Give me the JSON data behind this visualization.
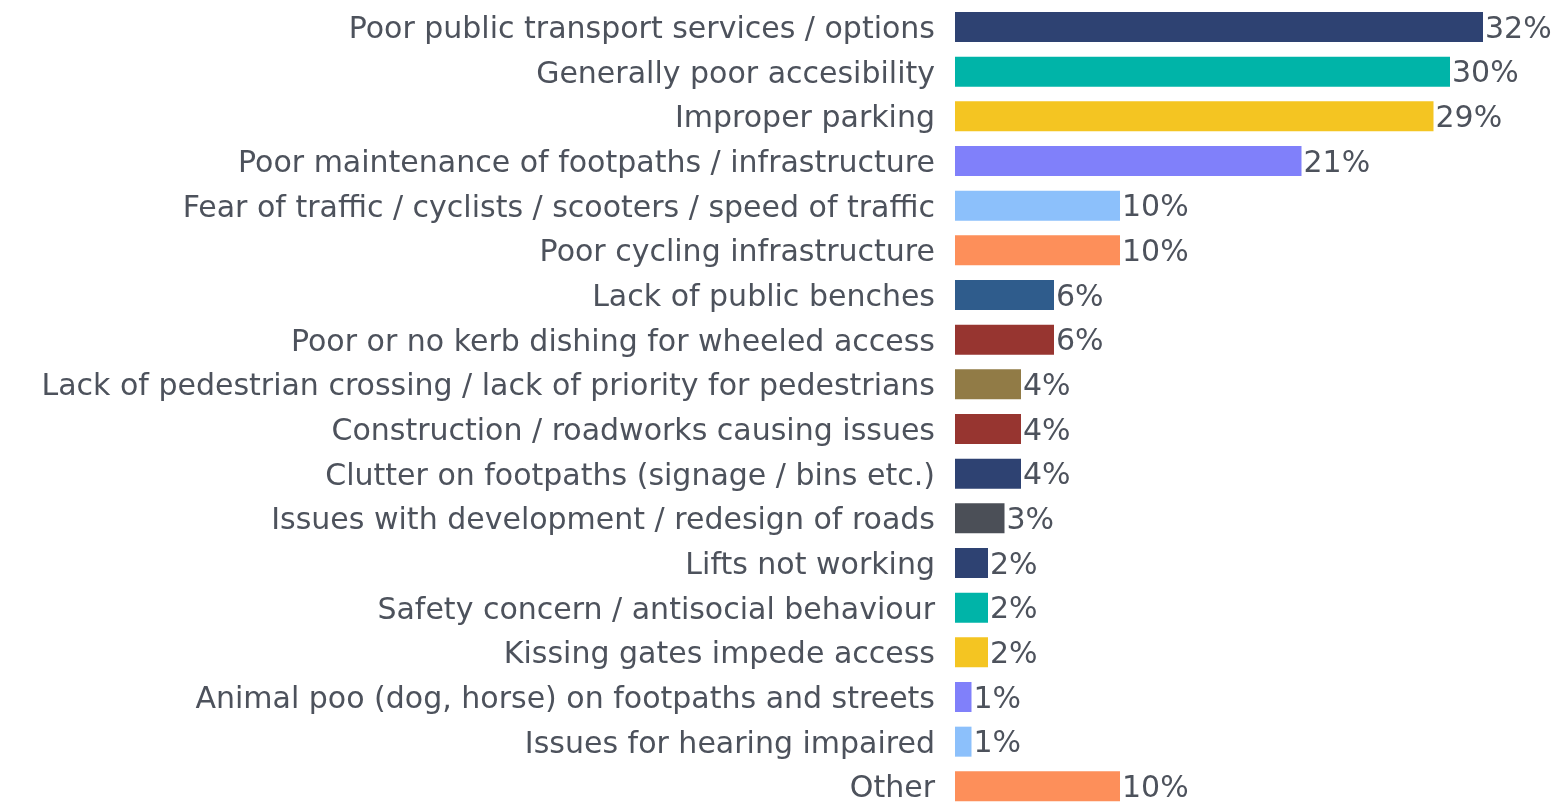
{
  "chart_data": {
    "type": "bar",
    "orientation": "horizontal",
    "categories": [
      "Poor public transport services / options",
      "Generally poor accesibility",
      "Improper parking",
      "Poor maintenance of footpaths / infrastructure",
      "Fear of traffic / cyclists / scooters / speed of traffic",
      "Poor cycling infrastructure",
      "Lack of public benches",
      "Poor or no kerb dishing for wheeled access",
      "Lack of pedestrian crossing / lack of priority for pedestrians",
      "Construction / roadworks causing issues",
      "Clutter on footpaths (signage / bins etc.)",
      "Issues with development / redesign of roads",
      "Lifts not working",
      "Safety concern / antisocial behaviour",
      "Kissing gates impede access",
      "Animal poo (dog, horse) on footpaths and streets",
      "Issues for hearing impaired",
      "Other"
    ],
    "values": [
      32,
      30,
      29,
      21,
      10,
      10,
      6,
      6,
      4,
      4,
      4,
      3,
      2,
      2,
      2,
      1,
      1,
      10
    ],
    "value_labels": [
      "32%",
      "30%",
      "29%",
      "21%",
      "10%",
      "10%",
      "6%",
      "6%",
      "4%",
      "4%",
      "4%",
      "3%",
      "2%",
      "2%",
      "2%",
      "1%",
      "1%",
      "10%"
    ],
    "colors": [
      "#2e4272",
      "#00b4a8",
      "#f4c522",
      "#8080fa",
      "#8cc0fb",
      "#fd8f5a",
      "#2f5c8c",
      "#973530",
      "#917b46",
      "#973530",
      "#2e4272",
      "#4b4f57",
      "#2e4272",
      "#00b4a8",
      "#f4c522",
      "#8080fa",
      "#8cc0fb",
      "#fd8f5a"
    ],
    "grid": false,
    "legend": false
  }
}
